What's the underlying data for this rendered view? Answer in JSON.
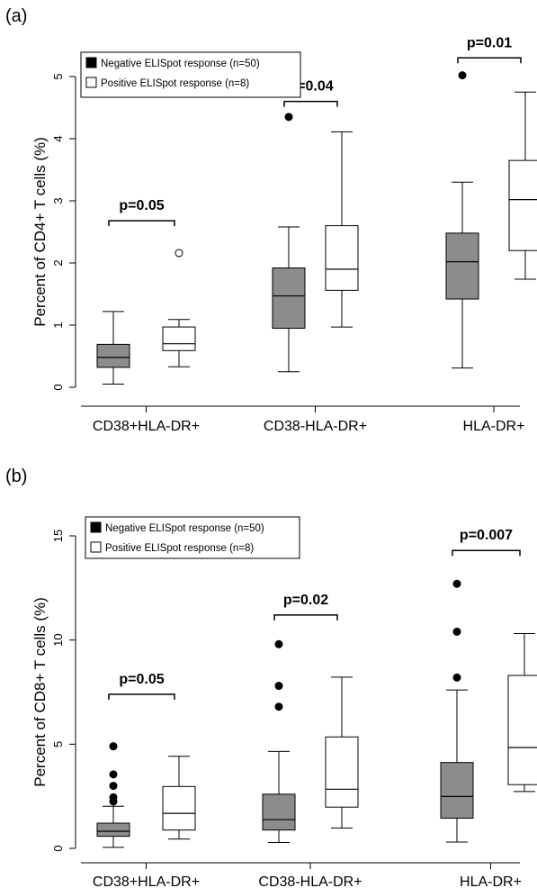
{
  "chart_data": [
    {
      "type": "box",
      "panel_label": "(a)",
      "ylabel": "Percent of CD4+ T cells (%)",
      "ylim": [
        0,
        5
      ],
      "yticks": [
        0,
        1,
        2,
        3,
        4,
        5
      ],
      "categories": [
        "CD38+HLA-DR+",
        "CD38-HLA-DR+",
        "HLA-DR+"
      ],
      "legend": {
        "position": "top-left",
        "entries": [
          {
            "label": "Negative ELISpot response (n=50)",
            "fill": "#8c8c8c"
          },
          {
            "label": "Positive ELISpot response (n=8)",
            "fill": "#ffffff"
          }
        ]
      },
      "series": [
        {
          "name": "Negative ELISpot response (n=50)",
          "color": "#8c8c8c",
          "boxes": [
            {
              "whisker_low": 0.05,
              "q1": 0.32,
              "median": 0.48,
              "q3": 0.69,
              "whisker_high": 1.22,
              "outliers": []
            },
            {
              "whisker_low": 0.25,
              "q1": 0.95,
              "median": 1.47,
              "q3": 1.92,
              "whisker_high": 2.58,
              "outliers": [
                4.35
              ]
            },
            {
              "whisker_low": 0.31,
              "q1": 1.42,
              "median": 2.02,
              "q3": 2.48,
              "whisker_high": 3.3,
              "outliers": [
                5.02
              ]
            }
          ]
        },
        {
          "name": "Positive ELISpot response (n=8)",
          "color": "#ffffff",
          "boxes": [
            {
              "whisker_low": 0.33,
              "q1": 0.59,
              "median": 0.7,
              "q3": 0.97,
              "whisker_high": 1.09,
              "outliers": [
                2.16
              ]
            },
            {
              "whisker_low": 0.97,
              "q1": 1.56,
              "median": 1.9,
              "q3": 2.6,
              "whisker_high": 4.11,
              "outliers": []
            },
            {
              "whisker_low": 1.74,
              "q1": 2.2,
              "median": 3.02,
              "q3": 3.65,
              "whisker_high": 4.75,
              "outliers": []
            }
          ]
        }
      ],
      "annotations": [
        {
          "category": "CD38+HLA-DR+",
          "text": "p=0.05",
          "y": 2.68
        },
        {
          "category": "CD38-HLA-DR+",
          "text": "p=0.04",
          "y": 4.6
        },
        {
          "category": "HLA-DR+",
          "text": "p=0.01",
          "y": 5.3
        }
      ],
      "grid": false
    },
    {
      "type": "box",
      "panel_label": "(b)",
      "ylabel": "Percent of CD8+ T cells (%)",
      "ylim": [
        0,
        15
      ],
      "yticks": [
        0,
        5,
        10,
        15
      ],
      "categories": [
        "CD38+HLA-DR+",
        "CD38-HLA-DR+",
        "HLA-DR+"
      ],
      "legend": {
        "position": "top-left",
        "entries": [
          {
            "label": "Negative ELISpot response (n=50)",
            "fill": "#8c8c8c"
          },
          {
            "label": "Positive ELISpot response (n=8)",
            "fill": "#ffffff"
          }
        ]
      },
      "series": [
        {
          "name": "Negative ELISpot response (n=50)",
          "color": "#8c8c8c",
          "boxes": [
            {
              "whisker_low": 0.05,
              "q1": 0.58,
              "median": 0.82,
              "q3": 1.21,
              "whisker_high": 2.02,
              "outliers": [
                2.25,
                2.45,
                3.0,
                3.55,
                4.9
              ]
            },
            {
              "whisker_low": 0.28,
              "q1": 0.88,
              "median": 1.38,
              "q3": 2.6,
              "whisker_high": 4.65,
              "outliers": [
                6.8,
                7.8,
                9.8
              ]
            },
            {
              "whisker_low": 0.3,
              "q1": 1.45,
              "median": 2.49,
              "q3": 4.12,
              "whisker_high": 7.6,
              "outliers": [
                8.2,
                10.4,
                12.7
              ]
            }
          ]
        },
        {
          "name": "Positive ELISpot response (n=8)",
          "color": "#ffffff",
          "boxes": [
            {
              "whisker_low": 0.45,
              "q1": 0.88,
              "median": 1.68,
              "q3": 2.97,
              "whisker_high": 4.42,
              "outliers": []
            },
            {
              "whisker_low": 0.98,
              "q1": 1.98,
              "median": 2.84,
              "q3": 5.35,
              "whisker_high": 8.22,
              "outliers": []
            },
            {
              "whisker_low": 2.73,
              "q1": 3.06,
              "median": 4.84,
              "q3": 8.3,
              "whisker_high": 10.31,
              "outliers": []
            }
          ]
        }
      ],
      "annotations": [
        {
          "category": "CD38+HLA-DR+",
          "text": "p=0.05",
          "y": 7.4
        },
        {
          "category": "CD38-HLA-DR+",
          "text": "p=0.02",
          "y": 11.2
        },
        {
          "category": "HLA-DR+",
          "text": "p=0.007",
          "y": 14.3
        }
      ],
      "grid": false
    }
  ]
}
